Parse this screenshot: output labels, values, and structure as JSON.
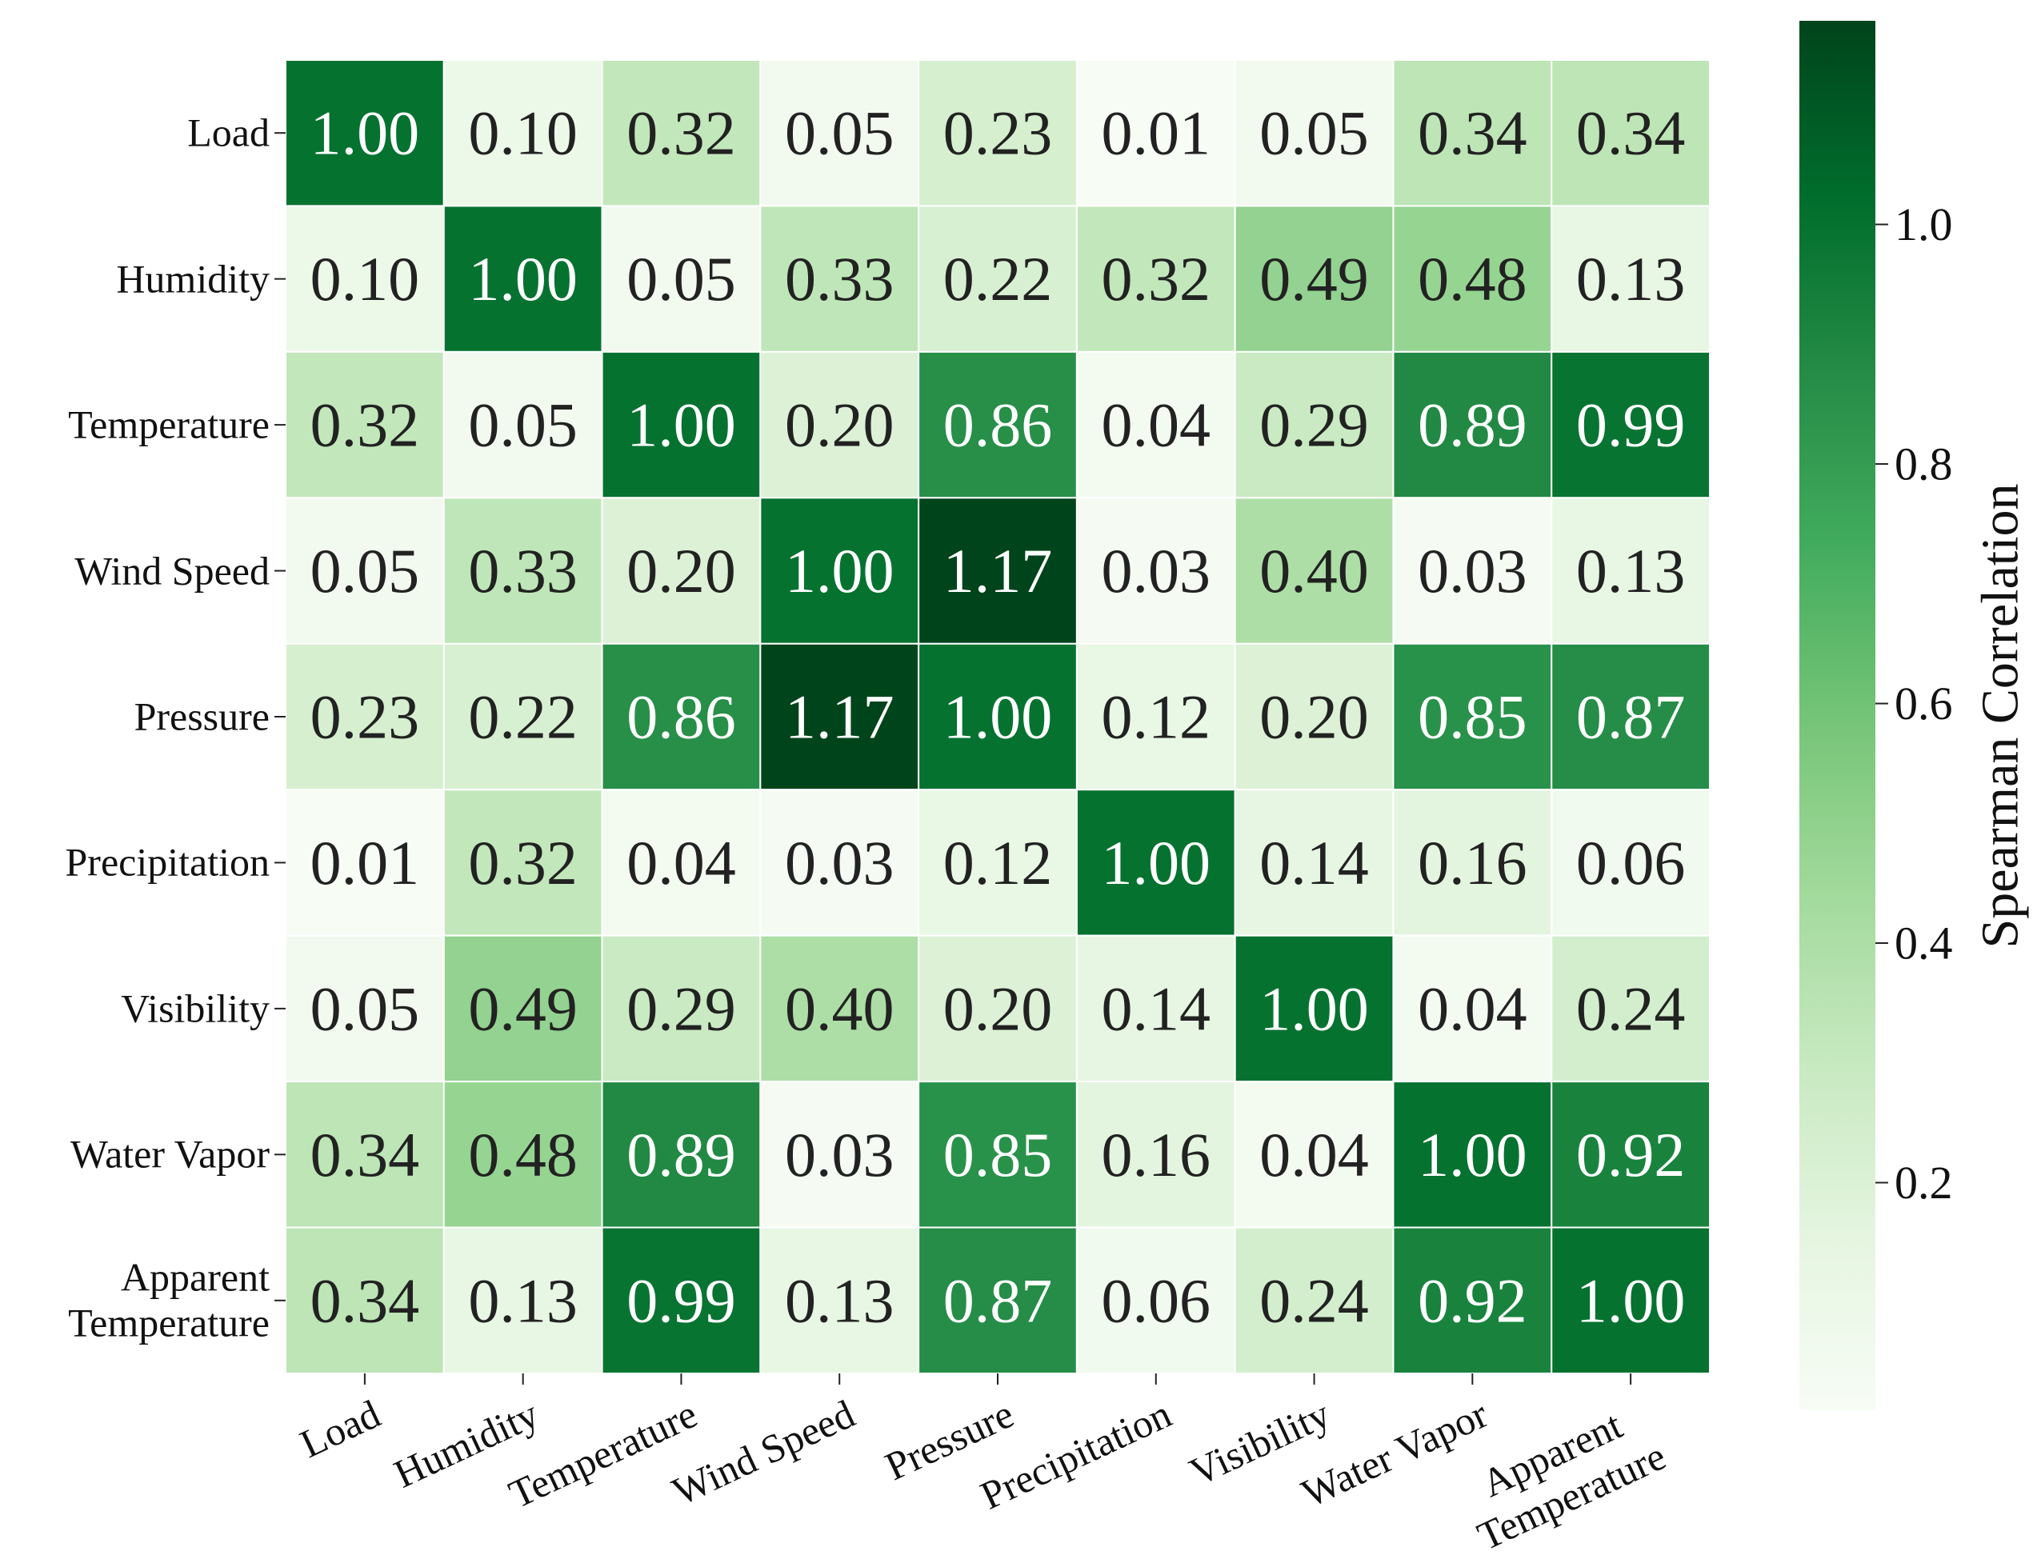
{
  "chart_data": {
    "type": "heatmap",
    "x": [
      "Load",
      "Humidity",
      "Temperature",
      "Wind Speed",
      "Pressure",
      "Precipitation",
      "Visibility",
      "Water Vapor",
      "Apparent\nTemperature"
    ],
    "y": [
      "Load",
      "Humidity",
      "Temperature",
      "Wind Speed",
      "Pressure",
      "Precipitation",
      "Visibility",
      "Water Vapor",
      "Apparent\nTemperature"
    ],
    "values": [
      [
        1.0,
        0.1,
        0.32,
        0.05,
        0.23,
        0.01,
        0.05,
        0.34,
        0.34
      ],
      [
        0.1,
        1.0,
        0.05,
        0.33,
        0.22,
        0.32,
        0.49,
        0.48,
        0.13
      ],
      [
        0.32,
        0.05,
        1.0,
        0.2,
        0.86,
        0.04,
        0.29,
        0.89,
        0.99
      ],
      [
        0.05,
        0.33,
        0.2,
        1.0,
        1.17,
        0.03,
        0.4,
        0.03,
        0.13
      ],
      [
        0.23,
        0.22,
        0.86,
        1.17,
        1.0,
        0.12,
        0.2,
        0.85,
        0.87
      ],
      [
        0.01,
        0.32,
        0.04,
        0.03,
        0.12,
        1.0,
        0.14,
        0.16,
        0.06
      ],
      [
        0.05,
        0.49,
        0.29,
        0.4,
        0.2,
        0.14,
        1.0,
        0.04,
        0.24
      ],
      [
        0.34,
        0.48,
        0.89,
        0.03,
        0.85,
        0.16,
        0.04,
        1.0,
        0.92
      ],
      [
        0.34,
        0.13,
        0.99,
        0.13,
        0.87,
        0.06,
        0.24,
        0.92,
        1.0
      ]
    ],
    "value_labels": [
      [
        "1.00",
        "0.10",
        "0.32",
        "0.05",
        "0.23",
        "0.01",
        "0.05",
        "0.34",
        "0.34"
      ],
      [
        "0.10",
        "1.00",
        "0.05",
        "0.33",
        "0.22",
        "0.32",
        "0.49",
        "0.48",
        "0.13"
      ],
      [
        "0.32",
        "0.05",
        "1.00",
        "0.20",
        "0.86",
        "0.04",
        "0.29",
        "0.89",
        "0.99"
      ],
      [
        "0.05",
        "0.33",
        "0.20",
        "1.00",
        "1.17",
        "0.03",
        "0.40",
        "0.03",
        "0.13"
      ],
      [
        "0.23",
        "0.22",
        "0.86",
        "1.17",
        "1.00",
        "0.12",
        "0.20",
        "0.85",
        "0.87"
      ],
      [
        "0.01",
        "0.32",
        "0.04",
        "0.03",
        "0.12",
        "1.00",
        "0.14",
        "0.16",
        "0.06"
      ],
      [
        "0.05",
        "0.49",
        "0.29",
        "0.40",
        "0.20",
        "0.14",
        "1.00",
        "0.04",
        "0.24"
      ],
      [
        "0.34",
        "0.48",
        "0.89",
        "0.03",
        "0.85",
        "0.16",
        "0.04",
        "1.00",
        "0.92"
      ],
      [
        "0.34",
        "0.13",
        "0.99",
        "0.13",
        "0.87",
        "0.06",
        "0.24",
        "0.92",
        "1.00"
      ]
    ],
    "colormap": [
      "#f7fcf5",
      "#e5f5e0",
      "#c7e9c0",
      "#a1d99b",
      "#74c476",
      "#41ab5d",
      "#238b45",
      "#006d2c",
      "#00441b"
    ],
    "colorbar_label": "Spearman Correlation",
    "clim": [
      0.01,
      1.17
    ],
    "cticks": [
      0.2,
      0.4,
      0.6,
      0.8,
      {
        "value": 1.0,
        "label": "1.0"
      }
    ]
  }
}
